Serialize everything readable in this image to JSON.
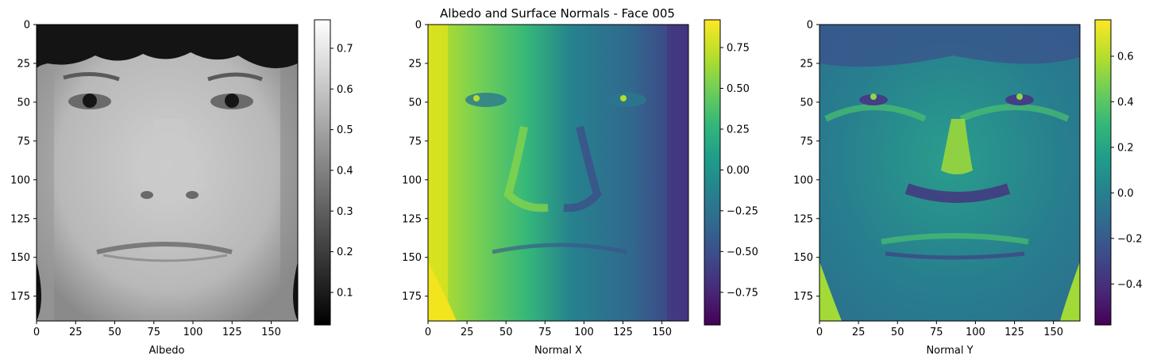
{
  "figure": {
    "title": "Albedo and Surface Normals - Face 005"
  },
  "chart_data": [
    {
      "type": "heatmap",
      "panel": "albedo",
      "xlabel": "Albedo",
      "ylabel": "",
      "image_size": {
        "width": 168,
        "height": 192
      },
      "xlim": [
        0,
        167
      ],
      "ylim": [
        191,
        0
      ],
      "x_ticks": [
        0,
        25,
        50,
        75,
        100,
        125,
        150
      ],
      "y_ticks": [
        0,
        25,
        50,
        75,
        100,
        125,
        150,
        175
      ],
      "colormap": "gray",
      "colorbar": {
        "min": 0.02,
        "max": 0.77,
        "ticks": [
          0.1,
          0.2,
          0.3,
          0.4,
          0.5,
          0.6,
          0.7
        ]
      }
    },
    {
      "type": "heatmap",
      "panel": "normal-x",
      "xlabel": "Normal X",
      "ylabel": "",
      "image_size": {
        "width": 168,
        "height": 192
      },
      "xlim": [
        0,
        167
      ],
      "ylim": [
        191,
        0
      ],
      "x_ticks": [
        0,
        25,
        50,
        75,
        100,
        125,
        150
      ],
      "y_ticks": [
        0,
        25,
        50,
        75,
        100,
        125,
        150,
        175
      ],
      "colormap": "viridis",
      "colorbar": {
        "min": -0.95,
        "max": 0.92,
        "ticks": [
          -0.75,
          -0.5,
          -0.25,
          0.0,
          0.25,
          0.5,
          0.75
        ]
      }
    },
    {
      "type": "heatmap",
      "panel": "normal-y",
      "xlabel": "Normal Y",
      "ylabel": "",
      "image_size": {
        "width": 168,
        "height": 192
      },
      "xlim": [
        0,
        167
      ],
      "ylim": [
        191,
        0
      ],
      "x_ticks": [
        0,
        25,
        50,
        75,
        100,
        125,
        150
      ],
      "y_ticks": [
        0,
        25,
        50,
        75,
        100,
        125,
        150,
        175
      ],
      "colormap": "viridis",
      "colorbar": {
        "min": -0.58,
        "max": 0.76,
        "ticks": [
          -0.4,
          -0.2,
          0.0,
          0.2,
          0.4,
          0.6
        ]
      }
    }
  ],
  "colors": {
    "viridis": [
      "#440154",
      "#482878",
      "#3e4989",
      "#31688e",
      "#26828e",
      "#1f9e89",
      "#35b779",
      "#6ece58",
      "#b5de2b",
      "#fde725"
    ],
    "gray": [
      "#000000",
      "#ffffff"
    ]
  }
}
